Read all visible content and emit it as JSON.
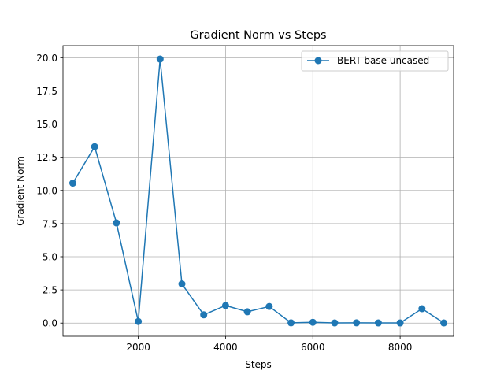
{
  "chart_data": {
    "type": "line",
    "title": "Gradient Norm vs Steps",
    "xlabel": "Steps",
    "ylabel": "Gradient Norm",
    "xlim": [
      275,
      9225
    ],
    "ylim": [
      -0.996,
      20.91
    ],
    "xticks": [
      2000,
      4000,
      6000,
      8000
    ],
    "xtick_labels": [
      "2000",
      "4000",
      "6000",
      "8000"
    ],
    "yticks": [
      0,
      2.5,
      5,
      7.5,
      10,
      12.5,
      15,
      17.5,
      20
    ],
    "ytick_labels": [
      "0.0",
      "2.5",
      "5.0",
      "7.5",
      "10.0",
      "12.5",
      "15.0",
      "17.5",
      "20.0"
    ],
    "grid": true,
    "legend_position": "upper right",
    "x": [
      500,
      1000,
      1500,
      2000,
      2500,
      3000,
      3500,
      4000,
      4500,
      5000,
      5500,
      6000,
      6500,
      7000,
      7500,
      8000,
      8500,
      9000
    ],
    "series": [
      {
        "name": "BERT base uncased",
        "color": "#1f77b4",
        "marker": "circle",
        "values": [
          10.55,
          13.3,
          7.55,
          0.12,
          19.9,
          2.95,
          0.62,
          1.32,
          0.85,
          1.25,
          0.02,
          0.06,
          0.01,
          0.02,
          0.01,
          0.01,
          1.08,
          0.01
        ]
      }
    ]
  }
}
